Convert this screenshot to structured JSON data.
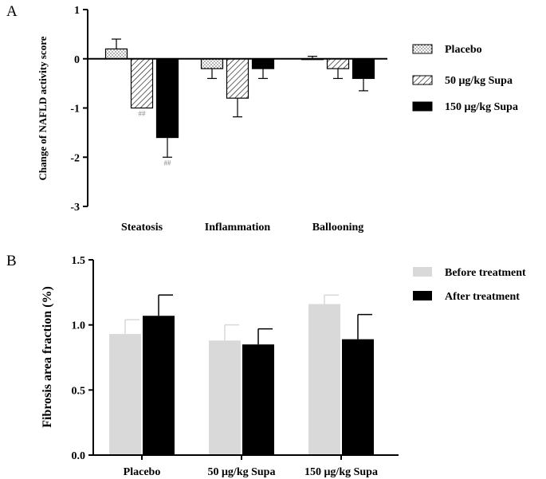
{
  "chart_data": [
    {
      "panel_label": "A",
      "type": "bar",
      "ylabel": "Change of NAFLD activity score",
      "ylim": [
        -3,
        1
      ],
      "yticks": [
        "1",
        "0",
        "-1",
        "-2",
        "-3"
      ],
      "categories": [
        "Steatosis",
        "Inflammation",
        "Ballooning"
      ],
      "legend_position": "right",
      "series": [
        {
          "name": "Placebo",
          "pattern": "dots",
          "fill": "#ffffff",
          "values": [
            0.2,
            -0.2,
            0.0
          ],
          "errors": [
            0.2,
            0.2,
            0.05
          ]
        },
        {
          "name": "50 μg/kg Supa",
          "pattern": "hatch",
          "fill": "#ffffff",
          "values": [
            -1.0,
            -0.8,
            -0.2
          ],
          "errors": [
            0.0,
            0.38,
            0.2
          ]
        },
        {
          "name": "150 μg/kg Supa",
          "pattern": "solid",
          "fill": "#000000",
          "values": [
            -1.6,
            -0.2,
            -0.4
          ],
          "errors": [
            0.4,
            0.2,
            0.25
          ]
        }
      ],
      "annotations": [
        {
          "series": 1,
          "category": 0,
          "text": "##"
        },
        {
          "series": 2,
          "category": 0,
          "text": "##"
        }
      ]
    },
    {
      "panel_label": "B",
      "type": "bar",
      "ylabel": "Fibrosis area fraction (%)",
      "ylim": [
        0,
        1.5
      ],
      "yticks": [
        "0.0",
        "0.5",
        "1.0",
        "1.5"
      ],
      "categories": [
        "Placebo",
        "50 μg/kg Supa",
        "150 μg/kg Supa"
      ],
      "legend_position": "top-right",
      "series": [
        {
          "name": "Before treatment",
          "fill": "#d9d9d9",
          "values": [
            0.93,
            0.88,
            1.16
          ],
          "errors": [
            0.11,
            0.12,
            0.07
          ]
        },
        {
          "name": "After treatment",
          "fill": "#000000",
          "values": [
            1.07,
            0.85,
            0.89
          ],
          "errors": [
            0.16,
            0.12,
            0.19
          ]
        }
      ]
    }
  ]
}
